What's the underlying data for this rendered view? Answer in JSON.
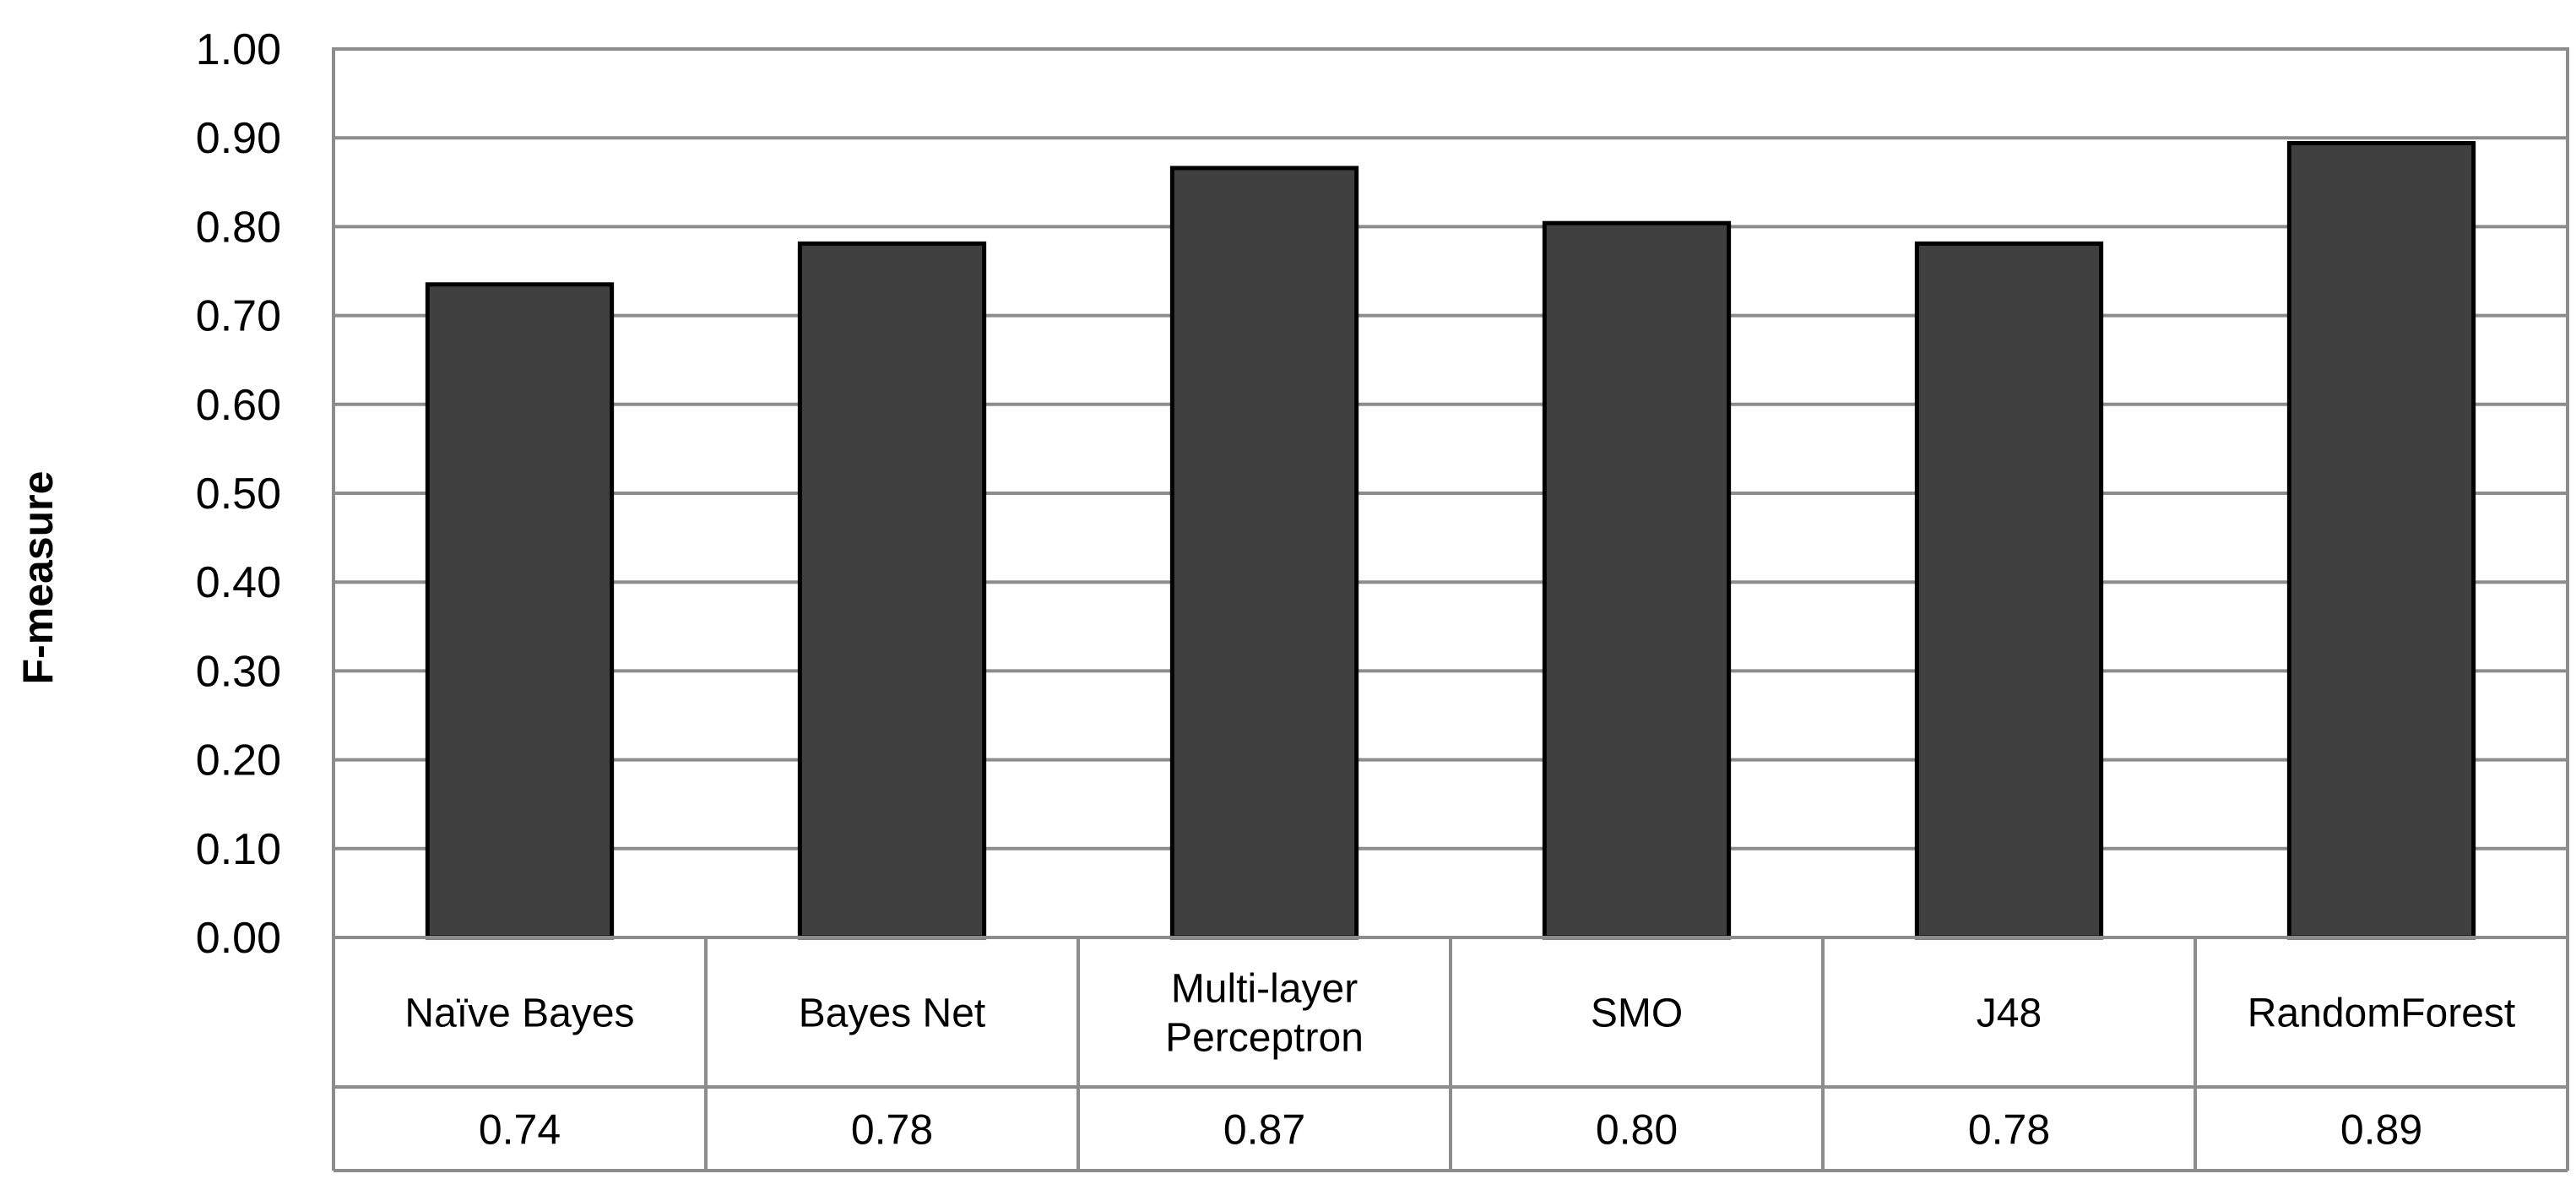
{
  "chart_data": {
    "type": "bar",
    "categories": [
      [
        "Naïve Bayes"
      ],
      [
        "Bayes Net"
      ],
      [
        "Multi-layer",
        "Perceptron"
      ],
      [
        "SMO"
      ],
      [
        "J48"
      ],
      [
        "RandomForest"
      ]
    ],
    "values": [
      0.735,
      0.781,
      0.866,
      0.804,
      0.781,
      0.894
    ],
    "value_labels": [
      "0.74",
      "0.78",
      "0.87",
      "0.80",
      "0.78",
      "0.89"
    ],
    "yticks": [
      "0.00",
      "0.10",
      "0.20",
      "0.30",
      "0.40",
      "0.50",
      "0.60",
      "0.70",
      "0.80",
      "0.90",
      "1.00"
    ],
    "ylim": [
      0,
      1
    ],
    "ylabel": "F-measure",
    "xlabel": "",
    "title": "",
    "grid": true,
    "legend": "none",
    "data_table": true,
    "colors": {
      "bar_fill": "#404040",
      "bar_stroke": "#000000",
      "grid": "#8c8c8c",
      "axis": "#8c8c8c"
    }
  }
}
